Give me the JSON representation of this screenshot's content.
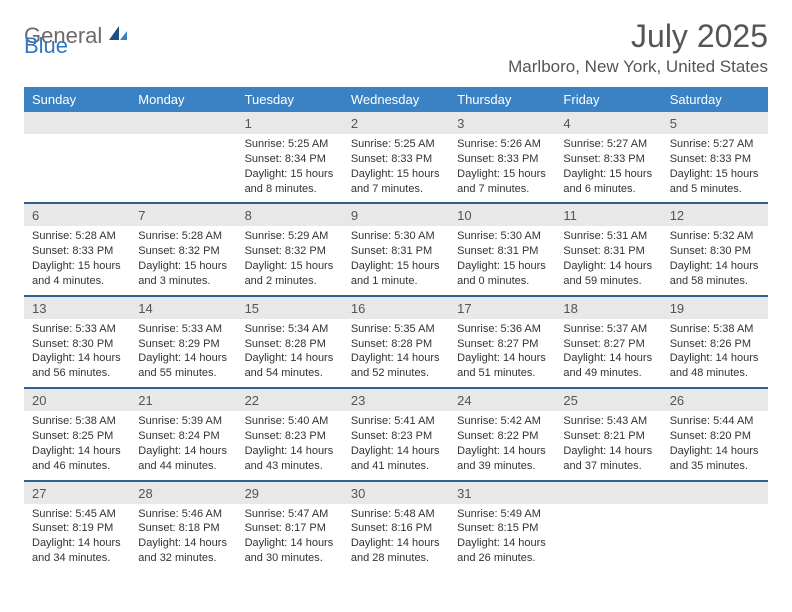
{
  "logo": {
    "word1": "General",
    "word2": "Blue"
  },
  "title": "July 2025",
  "location": "Marlboro, New York, United States",
  "colors": {
    "header_bg": "#3b82c4",
    "header_text": "#ffffff",
    "daynum_bg": "#e8e8e8",
    "week_divider": "#2f5e8f",
    "body_text": "#333333",
    "title_text": "#555555",
    "logo_gray": "#6b6b6b",
    "logo_blue": "#2f78c4",
    "background": "#ffffff"
  },
  "typography": {
    "title_fontsize": 32,
    "location_fontsize": 17,
    "weekday_fontsize": 13,
    "daynum_fontsize": 13,
    "cell_fontsize": 11
  },
  "weekdays": [
    "Sunday",
    "Monday",
    "Tuesday",
    "Wednesday",
    "Thursday",
    "Friday",
    "Saturday"
  ],
  "weeks": [
    [
      {
        "n": "",
        "sr": "",
        "ss": "",
        "dl": ""
      },
      {
        "n": "",
        "sr": "",
        "ss": "",
        "dl": ""
      },
      {
        "n": "1",
        "sr": "Sunrise: 5:25 AM",
        "ss": "Sunset: 8:34 PM",
        "dl": "Daylight: 15 hours and 8 minutes."
      },
      {
        "n": "2",
        "sr": "Sunrise: 5:25 AM",
        "ss": "Sunset: 8:33 PM",
        "dl": "Daylight: 15 hours and 7 minutes."
      },
      {
        "n": "3",
        "sr": "Sunrise: 5:26 AM",
        "ss": "Sunset: 8:33 PM",
        "dl": "Daylight: 15 hours and 7 minutes."
      },
      {
        "n": "4",
        "sr": "Sunrise: 5:27 AM",
        "ss": "Sunset: 8:33 PM",
        "dl": "Daylight: 15 hours and 6 minutes."
      },
      {
        "n": "5",
        "sr": "Sunrise: 5:27 AM",
        "ss": "Sunset: 8:33 PM",
        "dl": "Daylight: 15 hours and 5 minutes."
      }
    ],
    [
      {
        "n": "6",
        "sr": "Sunrise: 5:28 AM",
        "ss": "Sunset: 8:33 PM",
        "dl": "Daylight: 15 hours and 4 minutes."
      },
      {
        "n": "7",
        "sr": "Sunrise: 5:28 AM",
        "ss": "Sunset: 8:32 PM",
        "dl": "Daylight: 15 hours and 3 minutes."
      },
      {
        "n": "8",
        "sr": "Sunrise: 5:29 AM",
        "ss": "Sunset: 8:32 PM",
        "dl": "Daylight: 15 hours and 2 minutes."
      },
      {
        "n": "9",
        "sr": "Sunrise: 5:30 AM",
        "ss": "Sunset: 8:31 PM",
        "dl": "Daylight: 15 hours and 1 minute."
      },
      {
        "n": "10",
        "sr": "Sunrise: 5:30 AM",
        "ss": "Sunset: 8:31 PM",
        "dl": "Daylight: 15 hours and 0 minutes."
      },
      {
        "n": "11",
        "sr": "Sunrise: 5:31 AM",
        "ss": "Sunset: 8:31 PM",
        "dl": "Daylight: 14 hours and 59 minutes."
      },
      {
        "n": "12",
        "sr": "Sunrise: 5:32 AM",
        "ss": "Sunset: 8:30 PM",
        "dl": "Daylight: 14 hours and 58 minutes."
      }
    ],
    [
      {
        "n": "13",
        "sr": "Sunrise: 5:33 AM",
        "ss": "Sunset: 8:30 PM",
        "dl": "Daylight: 14 hours and 56 minutes."
      },
      {
        "n": "14",
        "sr": "Sunrise: 5:33 AM",
        "ss": "Sunset: 8:29 PM",
        "dl": "Daylight: 14 hours and 55 minutes."
      },
      {
        "n": "15",
        "sr": "Sunrise: 5:34 AM",
        "ss": "Sunset: 8:28 PM",
        "dl": "Daylight: 14 hours and 54 minutes."
      },
      {
        "n": "16",
        "sr": "Sunrise: 5:35 AM",
        "ss": "Sunset: 8:28 PM",
        "dl": "Daylight: 14 hours and 52 minutes."
      },
      {
        "n": "17",
        "sr": "Sunrise: 5:36 AM",
        "ss": "Sunset: 8:27 PM",
        "dl": "Daylight: 14 hours and 51 minutes."
      },
      {
        "n": "18",
        "sr": "Sunrise: 5:37 AM",
        "ss": "Sunset: 8:27 PM",
        "dl": "Daylight: 14 hours and 49 minutes."
      },
      {
        "n": "19",
        "sr": "Sunrise: 5:38 AM",
        "ss": "Sunset: 8:26 PM",
        "dl": "Daylight: 14 hours and 48 minutes."
      }
    ],
    [
      {
        "n": "20",
        "sr": "Sunrise: 5:38 AM",
        "ss": "Sunset: 8:25 PM",
        "dl": "Daylight: 14 hours and 46 minutes."
      },
      {
        "n": "21",
        "sr": "Sunrise: 5:39 AM",
        "ss": "Sunset: 8:24 PM",
        "dl": "Daylight: 14 hours and 44 minutes."
      },
      {
        "n": "22",
        "sr": "Sunrise: 5:40 AM",
        "ss": "Sunset: 8:23 PM",
        "dl": "Daylight: 14 hours and 43 minutes."
      },
      {
        "n": "23",
        "sr": "Sunrise: 5:41 AM",
        "ss": "Sunset: 8:23 PM",
        "dl": "Daylight: 14 hours and 41 minutes."
      },
      {
        "n": "24",
        "sr": "Sunrise: 5:42 AM",
        "ss": "Sunset: 8:22 PM",
        "dl": "Daylight: 14 hours and 39 minutes."
      },
      {
        "n": "25",
        "sr": "Sunrise: 5:43 AM",
        "ss": "Sunset: 8:21 PM",
        "dl": "Daylight: 14 hours and 37 minutes."
      },
      {
        "n": "26",
        "sr": "Sunrise: 5:44 AM",
        "ss": "Sunset: 8:20 PM",
        "dl": "Daylight: 14 hours and 35 minutes."
      }
    ],
    [
      {
        "n": "27",
        "sr": "Sunrise: 5:45 AM",
        "ss": "Sunset: 8:19 PM",
        "dl": "Daylight: 14 hours and 34 minutes."
      },
      {
        "n": "28",
        "sr": "Sunrise: 5:46 AM",
        "ss": "Sunset: 8:18 PM",
        "dl": "Daylight: 14 hours and 32 minutes."
      },
      {
        "n": "29",
        "sr": "Sunrise: 5:47 AM",
        "ss": "Sunset: 8:17 PM",
        "dl": "Daylight: 14 hours and 30 minutes."
      },
      {
        "n": "30",
        "sr": "Sunrise: 5:48 AM",
        "ss": "Sunset: 8:16 PM",
        "dl": "Daylight: 14 hours and 28 minutes."
      },
      {
        "n": "31",
        "sr": "Sunrise: 5:49 AM",
        "ss": "Sunset: 8:15 PM",
        "dl": "Daylight: 14 hours and 26 minutes."
      },
      {
        "n": "",
        "sr": "",
        "ss": "",
        "dl": ""
      },
      {
        "n": "",
        "sr": "",
        "ss": "",
        "dl": ""
      }
    ]
  ]
}
